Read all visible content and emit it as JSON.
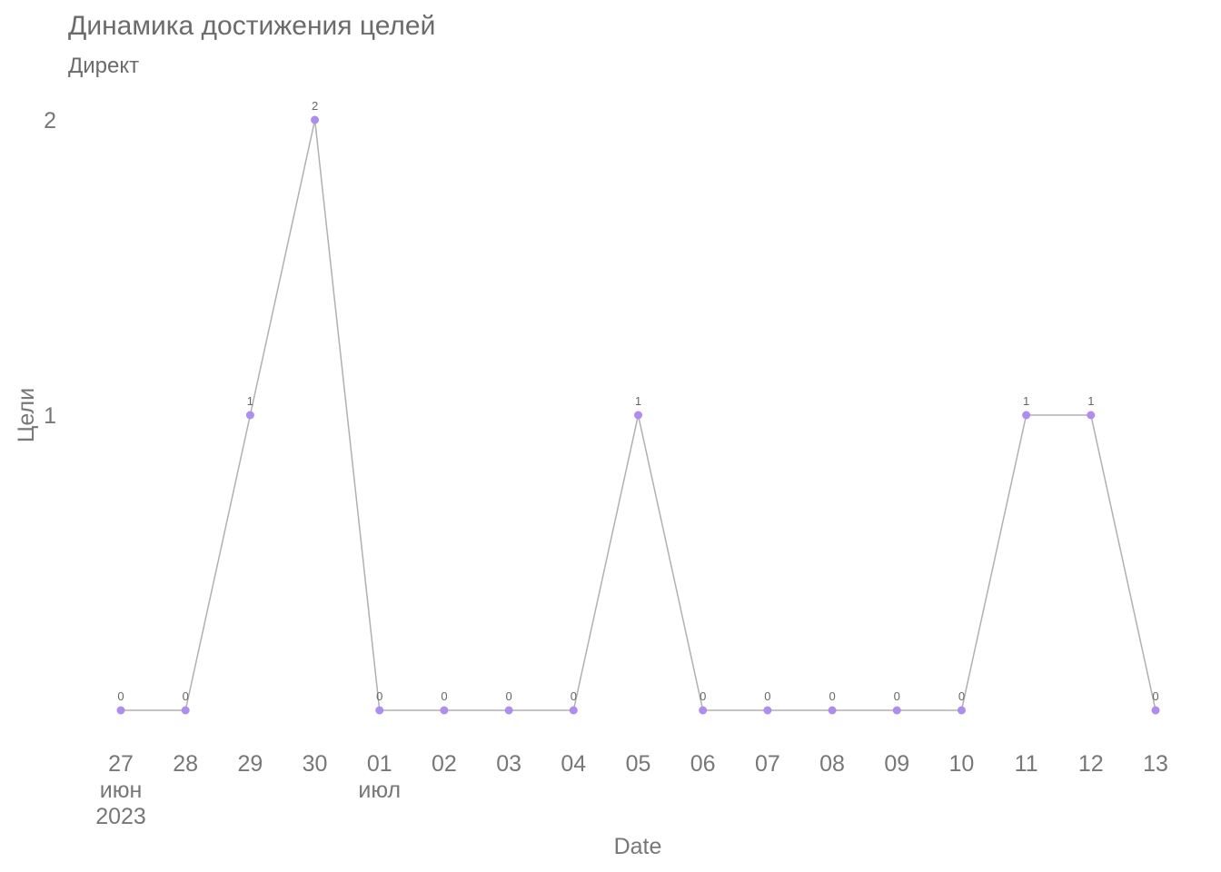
{
  "chart_data": {
    "type": "line",
    "title": "Динамика достижения целей",
    "subtitle": "Директ",
    "xlabel": "Date",
    "ylabel": "Цели",
    "x": [
      "2023-06-27",
      "2023-06-28",
      "2023-06-29",
      "2023-06-30",
      "2023-07-01",
      "2023-07-02",
      "2023-07-03",
      "2023-07-04",
      "2023-07-05",
      "2023-07-06",
      "2023-07-07",
      "2023-07-08",
      "2023-07-09",
      "2023-07-10",
      "2023-07-11",
      "2023-07-12",
      "2023-07-13"
    ],
    "x_tick_labels": [
      [
        "27",
        "июн",
        "2023"
      ],
      [
        "28"
      ],
      [
        "29"
      ],
      [
        "30"
      ],
      [
        "01",
        "июл"
      ],
      [
        "02"
      ],
      [
        "03"
      ],
      [
        "04"
      ],
      [
        "05"
      ],
      [
        "06"
      ],
      [
        "07"
      ],
      [
        "08"
      ],
      [
        "09"
      ],
      [
        "10"
      ],
      [
        "11"
      ],
      [
        "12"
      ],
      [
        "13"
      ]
    ],
    "y_ticks": [
      1,
      2
    ],
    "ylim": [
      0,
      2
    ],
    "grid": false,
    "series": [
      {
        "values": [
          0,
          0,
          1,
          2,
          0,
          0,
          0,
          0,
          1,
          0,
          0,
          0,
          0,
          0,
          1,
          1,
          0
        ],
        "color": "#ae8cf0",
        "line_color": "#b0b0b0"
      }
    ]
  }
}
